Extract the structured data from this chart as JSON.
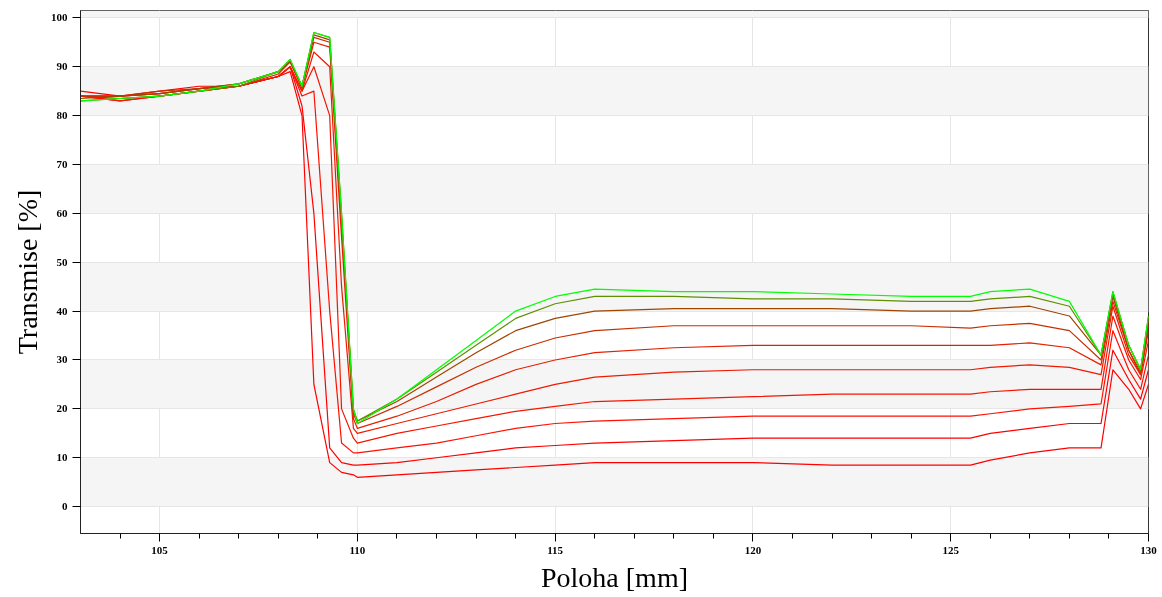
{
  "chart_data": {
    "type": "line",
    "xlabel": "Poloha [mm]",
    "ylabel": "Transmise [%]",
    "xlim": [
      103.0,
      130
    ],
    "ylim": [
      -5.5,
      101.5
    ],
    "xticks": [
      {
        "value": 104,
        "label": null
      },
      105,
      {
        "value": 106,
        "label": null
      },
      {
        "value": 107,
        "label": null
      },
      {
        "value": 108,
        "label": null
      },
      {
        "value": 109,
        "label": null
      },
      110,
      {
        "value": 111,
        "label": null
      },
      {
        "value": 112,
        "label": null
      },
      {
        "value": 113,
        "label": null
      },
      {
        "value": 114,
        "label": null
      },
      115,
      {
        "value": 116,
        "label": null
      },
      {
        "value": 117,
        "label": null
      },
      {
        "value": 118,
        "label": null
      },
      {
        "value": 119,
        "label": null
      },
      120,
      {
        "value": 121,
        "label": null
      },
      {
        "value": 122,
        "label": null
      },
      {
        "value": 123,
        "label": null
      },
      {
        "value": 124,
        "label": null
      },
      125,
      {
        "value": 126,
        "label": null
      },
      {
        "value": 127,
        "label": null
      },
      {
        "value": 128,
        "label": null
      },
      {
        "value": 129,
        "label": null
      },
      130
    ],
    "yticks": [
      0,
      10,
      20,
      30,
      40,
      50,
      60,
      70,
      80,
      90,
      100
    ],
    "grid": true,
    "marker": "none",
    "line_style": "solid",
    "x": [
      103.0,
      104,
      105,
      106,
      107,
      108,
      108.3,
      108.6,
      108.9,
      109.3,
      109.6,
      109.9,
      110,
      111,
      112,
      113,
      114,
      115,
      116,
      118,
      120,
      122,
      124,
      125.5,
      126,
      127,
      128,
      128.8,
      129.1,
      129.5,
      129.8,
      130
    ],
    "series": [
      {
        "color": "#ff0000",
        "values": [
          85,
          84,
          85,
          86,
          86,
          88,
          89,
          80,
          25,
          9,
          7,
          6.5,
          6,
          6.5,
          7,
          7.5,
          8,
          8.5,
          9,
          9,
          9,
          8.5,
          8.5,
          8.5,
          9.5,
          11,
          12,
          12,
          28,
          24,
          20,
          25
        ]
      },
      {
        "color": "#ff0000",
        "values": [
          84,
          83,
          84,
          85,
          86,
          88,
          90,
          82,
          60,
          12,
          9,
          8.5,
          8.5,
          9,
          10,
          11,
          12,
          12.5,
          13,
          13.5,
          14,
          14,
          14,
          14,
          15,
          16,
          17,
          17,
          32,
          26,
          22,
          28
        ]
      },
      {
        "color": "#ff1000",
        "values": [
          84,
          83,
          84,
          85,
          86,
          88,
          90,
          84,
          85,
          40,
          13,
          11,
          11,
          12,
          13,
          14.5,
          16,
          17,
          17.5,
          18,
          18.5,
          18.5,
          18.5,
          18.5,
          19,
          20,
          20.5,
          21,
          36,
          28,
          24,
          31
        ]
      },
      {
        "color": "#f51500",
        "values": [
          84,
          83.5,
          84,
          85,
          86,
          88,
          90,
          85,
          90,
          80,
          20,
          14,
          13,
          15,
          16.5,
          18,
          19.5,
          20.5,
          21.5,
          22,
          22.5,
          23,
          23,
          23,
          23.5,
          24,
          24,
          24,
          39,
          30,
          26,
          34
        ]
      },
      {
        "color": "#ee1a00",
        "values": [
          84,
          84,
          84.5,
          85.5,
          86,
          88,
          90,
          85,
          93,
          90,
          45,
          16,
          15,
          17,
          19,
          21,
          23,
          25,
          26.5,
          27.5,
          28,
          28,
          28,
          28,
          28.5,
          29,
          28.5,
          27,
          41,
          31,
          27,
          36
        ]
      },
      {
        "color": "#e42000",
        "values": [
          84,
          84,
          84.5,
          85.5,
          86,
          88.5,
          91,
          85.5,
          95,
          94,
          55,
          18,
          16,
          18.5,
          21.5,
          25,
          28,
          30,
          31.5,
          32.5,
          33,
          33,
          33,
          33,
          33,
          33.5,
          32.5,
          29,
          42,
          32,
          27,
          37
        ]
      },
      {
        "color": "#c82f00",
        "values": [
          84,
          84,
          85,
          85.5,
          86.5,
          89,
          91,
          86,
          96,
          95,
          58,
          19,
          17,
          20.5,
          24.5,
          28.5,
          32,
          34.5,
          36,
          37,
          37,
          37,
          37,
          36.5,
          37,
          37.5,
          36,
          30,
          43,
          32,
          27.5,
          38
        ]
      },
      {
        "color": "#a04500",
        "values": [
          83.5,
          84,
          84.5,
          85.5,
          86.5,
          89,
          91,
          86,
          96.5,
          95.5,
          59,
          19.5,
          17.5,
          21.5,
          26.5,
          31.5,
          36,
          38.5,
          40,
          40.5,
          40.5,
          40.5,
          40,
          40,
          40.5,
          41,
          39,
          31,
          43.5,
          33,
          28,
          38.5
        ]
      },
      {
        "color": "#608f00",
        "values": [
          83,
          83.5,
          84,
          85,
          86,
          89,
          91.5,
          86,
          97,
          96,
          60,
          20,
          17.5,
          22,
          27.5,
          33,
          38.5,
          41.5,
          43,
          43,
          42.5,
          42.5,
          42,
          42,
          42.5,
          43,
          41,
          31,
          44,
          33,
          28,
          39
        ]
      },
      {
        "color": "#00ff00",
        "values": [
          83,
          83.5,
          84,
          85,
          86.5,
          89,
          91.5,
          86,
          97,
          96,
          60,
          20,
          17,
          22,
          28,
          34,
          40,
          43,
          44.5,
          44,
          44,
          43.5,
          43,
          43,
          44,
          44.5,
          42,
          31,
          44,
          33,
          28,
          39
        ]
      }
    ]
  }
}
